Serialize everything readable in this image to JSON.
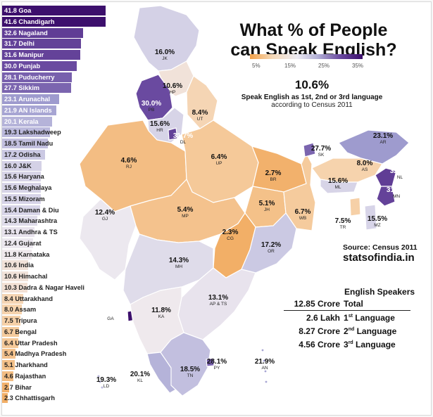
{
  "title": [
    "What % of People",
    "can Speak English?"
  ],
  "scale_ticks": [
    "5%",
    "15%",
    "25%",
    "35%"
  ],
  "headline": {
    "value": "10.6%",
    "text": "Speak English as 1st, 2nd or 3rd language",
    "note": "according to Census 2011"
  },
  "source": "Source: Census 2011",
  "site": "statsofindia.in",
  "speakers": {
    "header": "English Speakers",
    "total_value": "12.85 Crore",
    "total_label": "Total",
    "rows": [
      {
        "count": "2.6 Lakh",
        "ord": "1",
        "sup": "st",
        "label": "Language"
      },
      {
        "count": "8.27 Crore",
        "ord": "2",
        "sup": "nd",
        "label": "Language"
      },
      {
        "count": "4.56 Crore",
        "ord": "3",
        "sup": "rd",
        "label": "Language"
      }
    ]
  },
  "chart_data": {
    "type": "bar",
    "orientation": "horizontal",
    "categories": [
      "Goa",
      "Chandigarh",
      "Nagaland",
      "Delhi",
      "Manipur",
      "Punjab",
      "Puducherry",
      "Sikkim",
      "Arunachal",
      "AN Islands",
      "Kerala",
      "Lakshadweep",
      "Tamil Nadu",
      "Odisha",
      "J&K",
      "Haryana",
      "Meghalaya",
      "Mizoram",
      "Daman & Diu",
      "Maharashtra",
      "Andhra & TS",
      "Gujarat",
      "Karnataka",
      "India",
      "Himachal",
      "Dadra & Nagar Haveli",
      "Uttarakhand",
      "Assam",
      "Tripura",
      "Bengal",
      "Uttar Pradesh",
      "Madhya Pradesh",
      "Jharkhand",
      "Rajasthan",
      "Bihar",
      "Chhattisgarh"
    ],
    "values": [
      41.8,
      41.6,
      32.6,
      31.7,
      31.6,
      30.0,
      28.1,
      27.7,
      23.1,
      21.9,
      20.1,
      19.3,
      18.5,
      17.2,
      16.0,
      15.6,
      15.6,
      15.5,
      15.4,
      14.3,
      13.1,
      12.4,
      11.8,
      10.6,
      10.6,
      10.3,
      8.4,
      8.0,
      7.5,
      6.7,
      6.4,
      5.4,
      5.1,
      4.6,
      2.7,
      2.3
    ],
    "value_labels": [
      "41.8",
      "41.6",
      "32.6",
      "31.7",
      "31.6",
      "30.0",
      "28.1",
      "27.7",
      "23.1",
      "21.9",
      "20.1",
      "19.3",
      "18.5",
      "17.2",
      "16.0",
      "15.6",
      "15.6",
      "15.5",
      "15.4",
      "14.3",
      "13.1",
      "12.4",
      "11.8",
      "10.6",
      "10.6",
      "10.3",
      "8.4",
      "8.0",
      "7.5",
      "6.7",
      "6.4",
      "5.4",
      "5.1",
      "4.6",
      "2.7",
      "2.3"
    ],
    "map_labels": [
      {
        "pct": "16.0%",
        "code": "JK",
        "value": 16.0
      },
      {
        "pct": "10.6%",
        "code": "HP",
        "value": 10.6
      },
      {
        "pct": "30.0%",
        "code": "PB",
        "value": 30.0
      },
      {
        "pct": "8.4%",
        "code": "UT",
        "value": 8.4
      },
      {
        "pct": "15.6%",
        "code": "HR",
        "value": 15.6
      },
      {
        "pct": "31.7%",
        "code": "DL",
        "value": 31.7
      },
      {
        "pct": "4.6%",
        "code": "RJ",
        "value": 4.6
      },
      {
        "pct": "6.4%",
        "code": "UP",
        "value": 6.4
      },
      {
        "pct": "2.7%",
        "code": "BR",
        "value": 2.7
      },
      {
        "pct": "27.7%",
        "code": "SK",
        "value": 27.7
      },
      {
        "pct": "23.1%",
        "code": "AR",
        "value": 23.1
      },
      {
        "pct": "8.0%",
        "code": "AS",
        "value": 8.0
      },
      {
        "pct": "32.6%",
        "code": "NL",
        "value": 32.6
      },
      {
        "pct": "15.6%",
        "code": "ML",
        "value": 15.6
      },
      {
        "pct": "31.6%",
        "code": "MN",
        "value": 31.6
      },
      {
        "pct": "7.5%",
        "code": "TR",
        "value": 7.5
      },
      {
        "pct": "15.5%",
        "code": "MZ",
        "value": 15.5
      },
      {
        "pct": "12.4%",
        "code": "GJ",
        "value": 12.4
      },
      {
        "pct": "5.4%",
        "code": "MP",
        "value": 5.4
      },
      {
        "pct": "5.1%",
        "code": "JH",
        "value": 5.1
      },
      {
        "pct": "6.7%",
        "code": "WB",
        "value": 6.7
      },
      {
        "pct": "2.3%",
        "code": "CG",
        "value": 2.3
      },
      {
        "pct": "17.2%",
        "code": "OR",
        "value": 17.2
      },
      {
        "pct": "14.3%",
        "code": "MH",
        "value": 14.3
      },
      {
        "pct": "13.1%",
        "code": "AP & TS",
        "value": 13.1
      },
      {
        "pct": "41.8%",
        "code": "GA",
        "value": 41.8
      },
      {
        "pct": "11.8%",
        "code": "KA",
        "value": 11.8
      },
      {
        "pct": "28.1%",
        "code": "PY",
        "value": 28.1
      },
      {
        "pct": "21.9%",
        "code": "AN",
        "value": 21.9
      },
      {
        "pct": "20.1%",
        "code": "KL",
        "value": 20.1
      },
      {
        "pct": "18.5%",
        "code": "TN",
        "value": 18.5
      },
      {
        "pct": "19.3%",
        "code": "LD",
        "value": 19.3
      }
    ]
  }
}
